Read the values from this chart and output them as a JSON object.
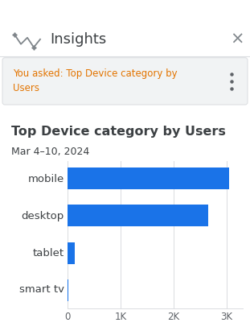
{
  "title": "Top Device category by Users",
  "subtitle": "Mar 4–10, 2024",
  "header_text": "Insights",
  "query_text": "You asked: Top Device category by\nUsers",
  "categories": [
    "mobile",
    "desktop",
    "tablet",
    "smart tv"
  ],
  "values": [
    3050,
    2650,
    130,
    18
  ],
  "bar_color": "#1a73e8",
  "xlim": [
    0,
    3300
  ],
  "xticks": [
    0,
    1000,
    2000,
    3000
  ],
  "xticklabels": [
    "0",
    "1K",
    "2K",
    "3K"
  ],
  "bg_color": "#ffffff",
  "panel_bg": "#f1f3f4",
  "title_fontsize": 11.5,
  "subtitle_fontsize": 9,
  "label_fontsize": 9.5,
  "tick_fontsize": 8.5,
  "query_color": "#e37400",
  "header_color": "#3c4043",
  "label_color": "#3c4043",
  "grid_color": "#dadce0",
  "header_fontsize": 13,
  "dots_color": "#5f6368",
  "icon_color": "#80868b",
  "x_color": "#80868b"
}
